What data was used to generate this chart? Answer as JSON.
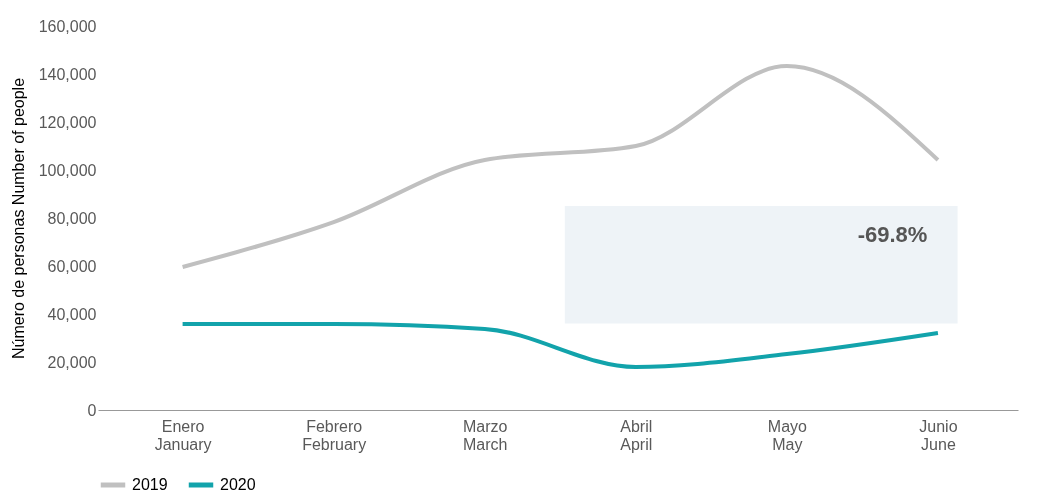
{
  "chart_data": {
    "type": "line",
    "ylabel": "Número de personas  Number of people",
    "categories": [
      "Enero\nJanuary",
      "Febrero\nFebruary",
      "Marzo\nMarch",
      "Abril\nApril",
      "Mayo\nMay",
      "Junio\nJune"
    ],
    "series": [
      {
        "name": "2019",
        "color": "#c0c0c0",
        "values": [
          59600,
          78300,
          104200,
          110000,
          143300,
          104200
        ]
      },
      {
        "name": "2020",
        "color": "#12a3ab",
        "values": [
          35800,
          35800,
          33800,
          17900,
          23300,
          32100
        ]
      }
    ],
    "ylim": [
      0,
      160000
    ],
    "yticks": [
      0,
      {
        "value": 20000,
        "label": "20,000"
      },
      {
        "value": 40000,
        "label": "40,000"
      },
      {
        "value": 60000,
        "label": "60,000"
      },
      {
        "value": 80000,
        "label": "80,000"
      },
      {
        "value": 100000,
        "label": "100,000"
      },
      {
        "value": 120000,
        "label": "120,000"
      },
      {
        "value": 140000,
        "label": "140,000"
      },
      {
        "value": 160000,
        "label": "160,000"
      }
    ],
    "grid": false,
    "legend": "bottom",
    "marker": "none",
    "line_style": "solid",
    "bands": [
      {
        "axis": "y",
        "from": 36000,
        "to": 85000,
        "label": "-69.8%",
        "color": "#eef3f7"
      }
    ]
  }
}
